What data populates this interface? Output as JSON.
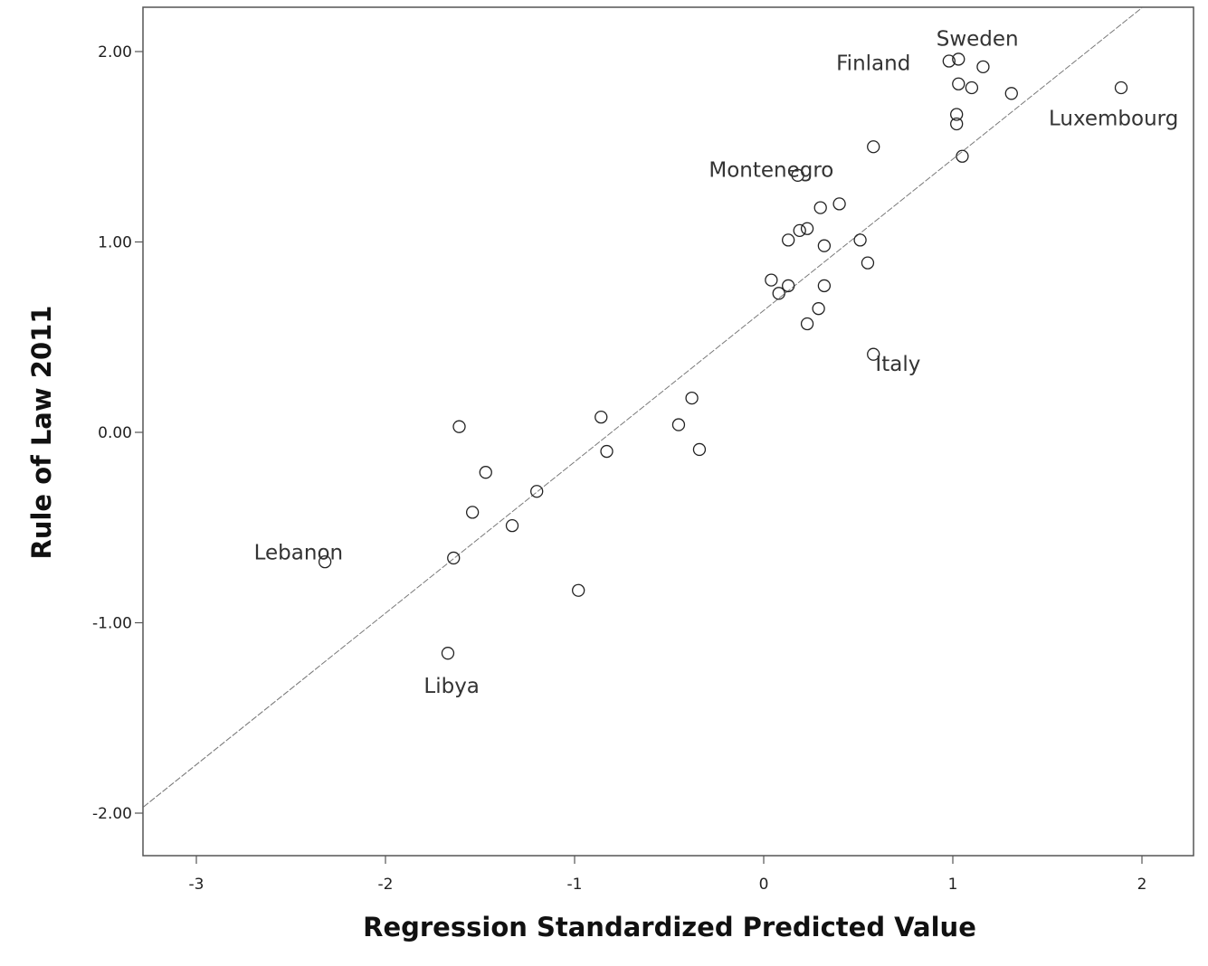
{
  "chart_data": {
    "type": "scatter",
    "title": "",
    "xlabel": "Regression Standardized Predicted Value",
    "ylabel": "Rule of Law 2011",
    "xlim": [
      -3.28,
      2.25
    ],
    "ylim": [
      -2.22,
      2.23
    ],
    "x_ticks": [
      -3,
      -2,
      -1,
      0,
      1,
      2
    ],
    "x_tick_labels": [
      "-3",
      "-2",
      "-1",
      "0",
      "1",
      "2"
    ],
    "y_ticks": [
      2,
      1,
      0,
      -1,
      -2
    ],
    "y_tick_labels": [
      "2.00",
      "1.00",
      "0.00",
      "-1.00",
      "-2.00"
    ],
    "grid": false,
    "fit_line": {
      "slope": 0.795,
      "intercept": 0.64
    },
    "points": [
      {
        "x": 0.98,
        "y": 1.95
      },
      {
        "x": 1.03,
        "y": 1.96
      },
      {
        "x": 1.16,
        "y": 1.92
      },
      {
        "x": 1.03,
        "y": 1.83
      },
      {
        "x": 1.1,
        "y": 1.81
      },
      {
        "x": 1.31,
        "y": 1.78
      },
      {
        "x": 1.89,
        "y": 1.81
      },
      {
        "x": 1.02,
        "y": 1.67
      },
      {
        "x": 1.02,
        "y": 1.62
      },
      {
        "x": 1.05,
        "y": 1.45
      },
      {
        "x": 0.58,
        "y": 1.5
      },
      {
        "x": 0.18,
        "y": 1.35
      },
      {
        "x": 0.4,
        "y": 1.2
      },
      {
        "x": 0.3,
        "y": 1.18
      },
      {
        "x": 0.19,
        "y": 1.06
      },
      {
        "x": 0.23,
        "y": 1.07
      },
      {
        "x": 0.13,
        "y": 1.01
      },
      {
        "x": 0.32,
        "y": 0.98
      },
      {
        "x": 0.51,
        "y": 1.01
      },
      {
        "x": 0.55,
        "y": 0.89
      },
      {
        "x": 0.04,
        "y": 0.8
      },
      {
        "x": 0.13,
        "y": 0.77
      },
      {
        "x": 0.08,
        "y": 0.73
      },
      {
        "x": 0.32,
        "y": 0.77
      },
      {
        "x": 0.29,
        "y": 0.65
      },
      {
        "x": 0.23,
        "y": 0.57
      },
      {
        "x": 0.58,
        "y": 0.41
      },
      {
        "x": -0.38,
        "y": 0.18
      },
      {
        "x": -0.86,
        "y": 0.08
      },
      {
        "x": -0.45,
        "y": 0.04
      },
      {
        "x": -1.61,
        "y": 0.03
      },
      {
        "x": -0.83,
        "y": -0.1
      },
      {
        "x": -0.34,
        "y": -0.09
      },
      {
        "x": -1.47,
        "y": -0.21
      },
      {
        "x": -1.2,
        "y": -0.31
      },
      {
        "x": -1.54,
        "y": -0.42
      },
      {
        "x": -1.33,
        "y": -0.49
      },
      {
        "x": -1.64,
        "y": -0.66
      },
      {
        "x": -2.32,
        "y": -0.68
      },
      {
        "x": -0.98,
        "y": -0.83
      },
      {
        "x": -1.67,
        "y": -1.16
      }
    ],
    "annotations": [
      {
        "text": "Sweden",
        "x": 1.13,
        "y": 2.07
      },
      {
        "text": "Finland",
        "x": 0.58,
        "y": 1.94
      },
      {
        "text": "Luxembourg",
        "x": 1.85,
        "y": 1.65
      },
      {
        "text": "Montenegro",
        "x": 0.04,
        "y": 1.38
      },
      {
        "text": "Italy",
        "x": 0.71,
        "y": 0.36
      },
      {
        "text": "Lebanon",
        "x": -2.46,
        "y": -0.63
      },
      {
        "text": "Libya",
        "x": -1.65,
        "y": -1.33
      }
    ]
  }
}
